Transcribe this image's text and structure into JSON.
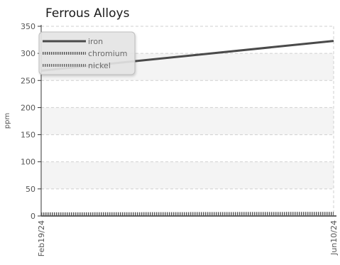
{
  "chart_data": {
    "type": "line",
    "title": "Ferrous Alloys",
    "xlabel": "",
    "ylabel": "ppm",
    "x": [
      "Feb19/24",
      "Jun10/24"
    ],
    "x_ticks": [
      "Feb19/24",
      "Jun10/24"
    ],
    "ylim": [
      0,
      350
    ],
    "y_ticks": [
      0,
      50,
      100,
      150,
      200,
      250,
      300,
      350
    ],
    "grid": true,
    "banded_background": true,
    "legend_position": "top-left",
    "series": [
      {
        "name": "iron",
        "values": [
          268,
          323
        ],
        "color": "#4a4a4a",
        "style": "solid"
      },
      {
        "name": "chromium",
        "values": [
          4,
          5
        ],
        "color": "#5a5a5a",
        "style": "dotted"
      },
      {
        "name": "nickel",
        "values": [
          3,
          4
        ],
        "color": "#6a6a6a",
        "style": "dotted"
      }
    ]
  }
}
